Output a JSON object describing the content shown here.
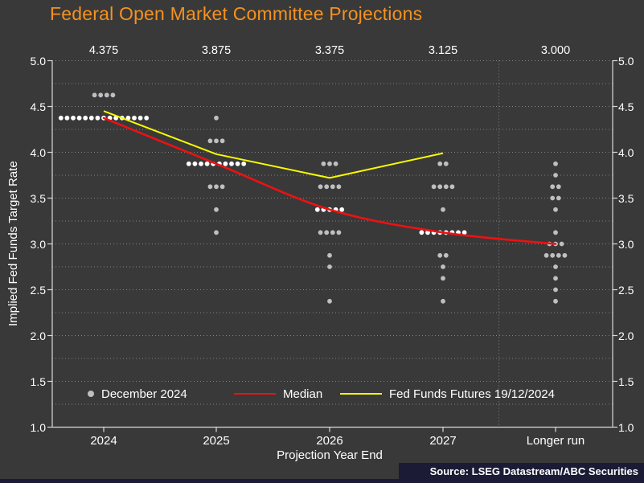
{
  "title": "Federal Open Market Committee Projections",
  "axes": {
    "y_title": "Implied Fed Funds Target Rate",
    "x_title": "Projection Year End",
    "y_tick_labels": [
      "5.0",
      "4.5",
      "4.0",
      "3.5",
      "3.0",
      "2.5",
      "2.0",
      "1.5",
      "1.0"
    ],
    "x_tick_labels": [
      "2024",
      "2025",
      "2026",
      "2027",
      "Longer run"
    ]
  },
  "top_median_labels": [
    "4.375",
    "3.875",
    "3.375",
    "3.125",
    "3.000"
  ],
  "legend": [
    "December 2024",
    "Median",
    "Fed Funds Futures 19/12/2024"
  ],
  "source": "Source: LSEG Datastream/ABC Securities",
  "colors": {
    "background": "#393939",
    "title": "#F5921E",
    "median_line": "#EE1111",
    "futures_line": "#FAFA00",
    "dot": "#BFBFBF",
    "dot_bright": "#FFFFFF",
    "grid": "#A0A0A0",
    "axis": "#D9D9D9",
    "text": "#FFFFFF",
    "source_bar": "#1B1B36"
  },
  "chart_data": {
    "type": "scatter",
    "title": "Federal Open Market Committee Projections",
    "xlabel": "Projection Year End",
    "ylabel": "Implied Fed Funds Target Rate",
    "ylim": [
      1.0,
      5.0
    ],
    "y_major_step": 0.5,
    "grid_step": 0.25,
    "grid": "dotted",
    "legend_position": "bottom-inside",
    "categories": [
      "2024",
      "2025",
      "2026",
      "2027",
      "Longer run"
    ],
    "medians": [
      4.375,
      3.875,
      3.375,
      3.125,
      3.0
    ],
    "dot_plot": [
      {
        "category": "2024",
        "dots": [
          {
            "value": 4.625,
            "count": 4
          },
          {
            "value": 4.375,
            "count": 15
          }
        ]
      },
      {
        "category": "2025",
        "dots": [
          {
            "value": 4.375,
            "count": 1
          },
          {
            "value": 4.125,
            "count": 3
          },
          {
            "value": 3.875,
            "count": 10
          },
          {
            "value": 3.625,
            "count": 3
          },
          {
            "value": 3.375,
            "count": 1
          },
          {
            "value": 3.125,
            "count": 1
          }
        ]
      },
      {
        "category": "2026",
        "dots": [
          {
            "value": 3.875,
            "count": 3
          },
          {
            "value": 3.625,
            "count": 4
          },
          {
            "value": 3.375,
            "count": 5
          },
          {
            "value": 3.125,
            "count": 4
          },
          {
            "value": 2.875,
            "count": 1
          },
          {
            "value": 2.75,
            "count": 1
          },
          {
            "value": 2.375,
            "count": 1
          }
        ]
      },
      {
        "category": "2027",
        "dots": [
          {
            "value": 3.875,
            "count": 2
          },
          {
            "value": 3.625,
            "count": 4
          },
          {
            "value": 3.375,
            "count": 1
          },
          {
            "value": 3.125,
            "count": 8
          },
          {
            "value": 2.875,
            "count": 2
          },
          {
            "value": 2.75,
            "count": 1
          },
          {
            "value": 2.625,
            "count": 1
          },
          {
            "value": 2.375,
            "count": 1
          }
        ]
      },
      {
        "category": "Longer run",
        "dots": [
          {
            "value": 3.875,
            "count": 1
          },
          {
            "value": 3.75,
            "count": 1
          },
          {
            "value": 3.625,
            "count": 2
          },
          {
            "value": 3.5,
            "count": 2
          },
          {
            "value": 3.375,
            "count": 1
          },
          {
            "value": 3.125,
            "count": 1
          },
          {
            "value": 3.0,
            "count": 3
          },
          {
            "value": 2.875,
            "count": 4
          },
          {
            "value": 2.75,
            "count": 1
          },
          {
            "value": 2.625,
            "count": 1
          },
          {
            "value": 2.5,
            "count": 1
          },
          {
            "value": 2.375,
            "count": 1
          }
        ]
      }
    ],
    "series": [
      {
        "name": "Median",
        "type": "line",
        "style": "smooth",
        "values": [
          4.375,
          3.875,
          3.375,
          3.125,
          3.0
        ]
      },
      {
        "name": "Fed Funds Futures 19/12/2024",
        "type": "line",
        "style": "straight",
        "values": [
          4.45,
          3.98,
          3.72,
          3.99,
          null
        ]
      }
    ],
    "longer_run_separator": true
  }
}
